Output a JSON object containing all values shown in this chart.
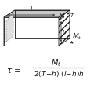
{
  "bg_color": "#ffffff",
  "fig_width": 1.2,
  "fig_height": 1.12,
  "dpi": 100,
  "dark": "#1a1a1a",
  "gray_top": "#c8c8c8",
  "gray_side": "#d8d8d8",
  "white": "#ffffff"
}
